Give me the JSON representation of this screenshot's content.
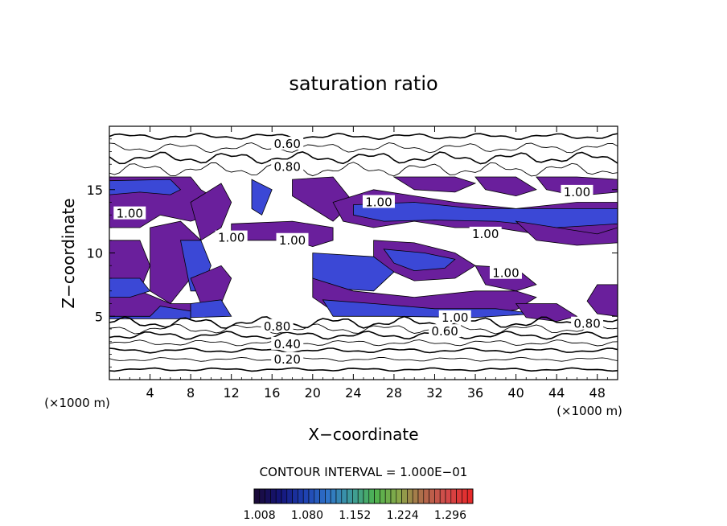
{
  "chart_data": {
    "type": "heatmap",
    "title": "saturation ratio",
    "xlabel": "X−coordinate",
    "ylabel": "Z−coordinate",
    "x_unit_left": "(×1000 m)",
    "x_unit_right": "(×1000 m)",
    "xlim": [
      0,
      50
    ],
    "ylim": [
      0,
      20
    ],
    "x_ticks": [
      4,
      8,
      12,
      16,
      20,
      24,
      28,
      32,
      36,
      40,
      44,
      48
    ],
    "y_ticks": [
      5,
      10,
      15
    ],
    "contour_interval_text": "CONTOUR INTERVAL = 1.000E−01",
    "colorbar": {
      "min": 1.0,
      "max": 1.33,
      "tick_labels": [
        "1.008",
        "1.080",
        "1.152",
        "1.224",
        "1.296"
      ],
      "colors": [
        "#1a0a3a",
        "#14157a",
        "#1e3fb0",
        "#2f74c9",
        "#3e9c9c",
        "#4db24d",
        "#8aa84a",
        "#b06a4a",
        "#d24a4a",
        "#e62a2a"
      ]
    },
    "contour_labels": [
      {
        "x": 17.5,
        "z": 18.6,
        "text": "0.60"
      },
      {
        "x": 17.5,
        "z": 16.8,
        "text": "0.80"
      },
      {
        "x": 26.5,
        "z": 14.0,
        "text": "1.00"
      },
      {
        "x": 46.0,
        "z": 14.8,
        "text": "1.00"
      },
      {
        "x": 2.0,
        "z": 13.1,
        "text": "1.00"
      },
      {
        "x": 18.0,
        "z": 11.0,
        "text": "1.00"
      },
      {
        "x": 37.0,
        "z": 11.5,
        "text": "1.00"
      },
      {
        "x": 12.0,
        "z": 11.2,
        "text": "1.00"
      },
      {
        "x": 39.0,
        "z": 8.4,
        "text": "1.00"
      },
      {
        "x": 34.0,
        "z": 4.9,
        "text": "1.00"
      },
      {
        "x": 16.5,
        "z": 4.2,
        "text": "0.80"
      },
      {
        "x": 33.0,
        "z": 3.8,
        "text": "0.60"
      },
      {
        "x": 47.0,
        "z": 4.4,
        "text": "0.80"
      },
      {
        "x": 17.5,
        "z": 2.8,
        "text": "0.40"
      },
      {
        "x": 17.5,
        "z": 1.6,
        "text": "0.20"
      }
    ],
    "supersaturated_regions": [
      {
        "color": "#6a1f9c",
        "points": [
          [
            0,
            16
          ],
          [
            8,
            16
          ],
          [
            9,
            15
          ],
          [
            10,
            14.5
          ],
          [
            10,
            13
          ],
          [
            8,
            12.5
          ],
          [
            5,
            13
          ],
          [
            3,
            12
          ],
          [
            0,
            12
          ]
        ]
      },
      {
        "color": "#3b48d6",
        "points": [
          [
            0,
            15.7
          ],
          [
            6,
            15.8
          ],
          [
            7,
            15
          ],
          [
            6,
            14.6
          ],
          [
            3,
            14.8
          ],
          [
            0,
            14.6
          ]
        ]
      },
      {
        "color": "#6a1f9c",
        "points": [
          [
            0,
            11
          ],
          [
            3,
            11
          ],
          [
            4,
            9
          ],
          [
            3,
            7
          ],
          [
            6,
            6
          ],
          [
            8,
            6
          ],
          [
            8,
            5
          ],
          [
            3,
            4.9
          ],
          [
            0,
            5
          ]
        ]
      },
      {
        "color": "#3b48d6",
        "points": [
          [
            0,
            8
          ],
          [
            3,
            8
          ],
          [
            4,
            7
          ],
          [
            2,
            6.5
          ],
          [
            0,
            6.5
          ]
        ]
      },
      {
        "color": "#3b48d6",
        "points": [
          [
            0,
            5
          ],
          [
            4,
            5
          ],
          [
            5,
            5.8
          ],
          [
            8,
            5.4
          ],
          [
            8,
            4.8
          ],
          [
            0,
            4.8
          ]
        ]
      },
      {
        "color": "#6a1f9c",
        "points": [
          [
            4,
            12
          ],
          [
            7,
            12.5
          ],
          [
            9,
            11
          ],
          [
            8,
            8
          ],
          [
            6,
            6
          ],
          [
            4,
            7
          ],
          [
            4,
            10
          ]
        ]
      },
      {
        "color": "#6a1f9c",
        "points": [
          [
            8,
            14
          ],
          [
            11,
            15.5
          ],
          [
            12,
            14
          ],
          [
            11,
            12
          ],
          [
            9,
            11
          ]
        ]
      },
      {
        "color": "#3b48d6",
        "points": [
          [
            7,
            11
          ],
          [
            9,
            11
          ],
          [
            10,
            9
          ],
          [
            9,
            7
          ],
          [
            8,
            7
          ]
        ]
      },
      {
        "color": "#6a1f9c",
        "points": [
          [
            8,
            8
          ],
          [
            11,
            9
          ],
          [
            12,
            8
          ],
          [
            11,
            6
          ],
          [
            9,
            6
          ]
        ]
      },
      {
        "color": "#3b48d6",
        "points": [
          [
            8,
            6
          ],
          [
            11,
            6.3
          ],
          [
            12,
            5
          ],
          [
            8,
            4.9
          ]
        ]
      },
      {
        "color": "#3b48d6",
        "points": [
          [
            14,
            15.8
          ],
          [
            16,
            15
          ],
          [
            15,
            13
          ],
          [
            14,
            13.5
          ]
        ]
      },
      {
        "color": "#6a1f9c",
        "points": [
          [
            18,
            15.8
          ],
          [
            22,
            16
          ],
          [
            24,
            14
          ],
          [
            22,
            12.5
          ],
          [
            20,
            13.5
          ],
          [
            18,
            14.5
          ]
        ]
      },
      {
        "color": "#6a1f9c",
        "points": [
          [
            12,
            11
          ],
          [
            18,
            11
          ],
          [
            20,
            10.5
          ],
          [
            22,
            11
          ],
          [
            22,
            12
          ],
          [
            18,
            12.5
          ],
          [
            12,
            12.3
          ]
        ]
      },
      {
        "color": "#6a1f9c",
        "points": [
          [
            22,
            14
          ],
          [
            26,
            15
          ],
          [
            30,
            14.5
          ],
          [
            34,
            14
          ],
          [
            40,
            13.5
          ],
          [
            46,
            14
          ],
          [
            50,
            14
          ],
          [
            50,
            11.5
          ],
          [
            46,
            11
          ],
          [
            42,
            11.5
          ],
          [
            38,
            12
          ],
          [
            34,
            12
          ],
          [
            30,
            12.5
          ],
          [
            26,
            12
          ],
          [
            23,
            12.5
          ]
        ]
      },
      {
        "color": "#3b48d6",
        "points": [
          [
            24,
            13.8
          ],
          [
            30,
            14
          ],
          [
            36,
            13.5
          ],
          [
            44,
            13.5
          ],
          [
            50,
            13.5
          ],
          [
            50,
            12.3
          ],
          [
            44,
            12
          ],
          [
            38,
            12.5
          ],
          [
            32,
            12.6
          ],
          [
            27,
            12.5
          ],
          [
            24,
            13
          ]
        ]
      },
      {
        "color": "#6a1f9c",
        "points": [
          [
            28,
            16
          ],
          [
            34,
            16
          ],
          [
            36,
            15.5
          ],
          [
            34,
            14.8
          ],
          [
            30,
            15
          ]
        ]
      },
      {
        "color": "#6a1f9c",
        "points": [
          [
            36,
            16
          ],
          [
            40,
            16
          ],
          [
            42,
            15
          ],
          [
            40,
            14.5
          ],
          [
            37,
            15
          ]
        ]
      },
      {
        "color": "#6a1f9c",
        "points": [
          [
            42,
            16
          ],
          [
            46,
            16
          ],
          [
            50,
            15.8
          ],
          [
            50,
            14.8
          ],
          [
            46,
            14.5
          ],
          [
            43,
            15
          ]
        ]
      },
      {
        "color": "#6a1f9c",
        "points": [
          [
            26,
            11
          ],
          [
            30,
            10.8
          ],
          [
            34,
            10
          ],
          [
            36,
            9
          ],
          [
            34,
            8
          ],
          [
            30,
            7.8
          ],
          [
            28,
            8.5
          ],
          [
            26,
            9.5
          ]
        ]
      },
      {
        "color": "#3b48d6",
        "points": [
          [
            27,
            10.3
          ],
          [
            31,
            10
          ],
          [
            34,
            9.5
          ],
          [
            33,
            8.8
          ],
          [
            30,
            8.6
          ],
          [
            28,
            9.2
          ]
        ]
      },
      {
        "color": "#3b48d6",
        "points": [
          [
            20,
            10
          ],
          [
            26,
            9.7
          ],
          [
            28,
            8.5
          ],
          [
            26,
            7
          ],
          [
            22,
            7.2
          ],
          [
            20,
            8
          ]
        ]
      },
      {
        "color": "#6a1f9c",
        "points": [
          [
            20,
            8
          ],
          [
            24,
            7
          ],
          [
            30,
            6.5
          ],
          [
            36,
            7
          ],
          [
            40,
            7
          ],
          [
            42,
            6.5
          ],
          [
            40,
            5.5
          ],
          [
            34,
            5
          ],
          [
            30,
            5
          ],
          [
            26,
            5.2
          ],
          [
            22,
            5.4
          ],
          [
            20,
            6.5
          ]
        ]
      },
      {
        "color": "#3b48d6",
        "points": [
          [
            21,
            6.3
          ],
          [
            26,
            6
          ],
          [
            32,
            5.6
          ],
          [
            38,
            5.6
          ],
          [
            42,
            5.2
          ],
          [
            36,
            4.9
          ],
          [
            28,
            5
          ],
          [
            22,
            5
          ]
        ]
      },
      {
        "color": "#6a1f9c",
        "points": [
          [
            36,
            9
          ],
          [
            40,
            8.8
          ],
          [
            42,
            7.5
          ],
          [
            40,
            7
          ],
          [
            37,
            7.5
          ]
        ]
      },
      {
        "color": "#6a1f9c",
        "points": [
          [
            40,
            12.5
          ],
          [
            44,
            12
          ],
          [
            48,
            11.5
          ],
          [
            50,
            12
          ],
          [
            50,
            10.8
          ],
          [
            46,
            10.6
          ],
          [
            42,
            11
          ]
        ]
      },
      {
        "color": "#6a1f9c",
        "points": [
          [
            40,
            6
          ],
          [
            44,
            6
          ],
          [
            46,
            5
          ],
          [
            44,
            4.6
          ],
          [
            41,
            4.9
          ]
        ]
      },
      {
        "color": "#6a1f9c",
        "points": [
          [
            48,
            7.5
          ],
          [
            50,
            7.5
          ],
          [
            50,
            5
          ],
          [
            48,
            5.2
          ],
          [
            47,
            6.2
          ]
        ]
      }
    ],
    "background_contours": [
      {
        "z": 19.2,
        "amp": 0.15
      },
      {
        "z": 18.3,
        "amp": 0.25
      },
      {
        "z": 17.5,
        "amp": 0.3
      },
      {
        "z": 16.6,
        "amp": 0.35
      },
      {
        "z": 4.5,
        "amp": 0.3
      },
      {
        "z": 4.0,
        "amp": 0.25
      },
      {
        "z": 3.5,
        "amp": 0.2
      },
      {
        "z": 2.9,
        "amp": 0.15
      },
      {
        "z": 2.3,
        "amp": 0.12
      },
      {
        "z": 1.6,
        "amp": 0.1
      },
      {
        "z": 0.8,
        "amp": 0.08
      }
    ]
  }
}
